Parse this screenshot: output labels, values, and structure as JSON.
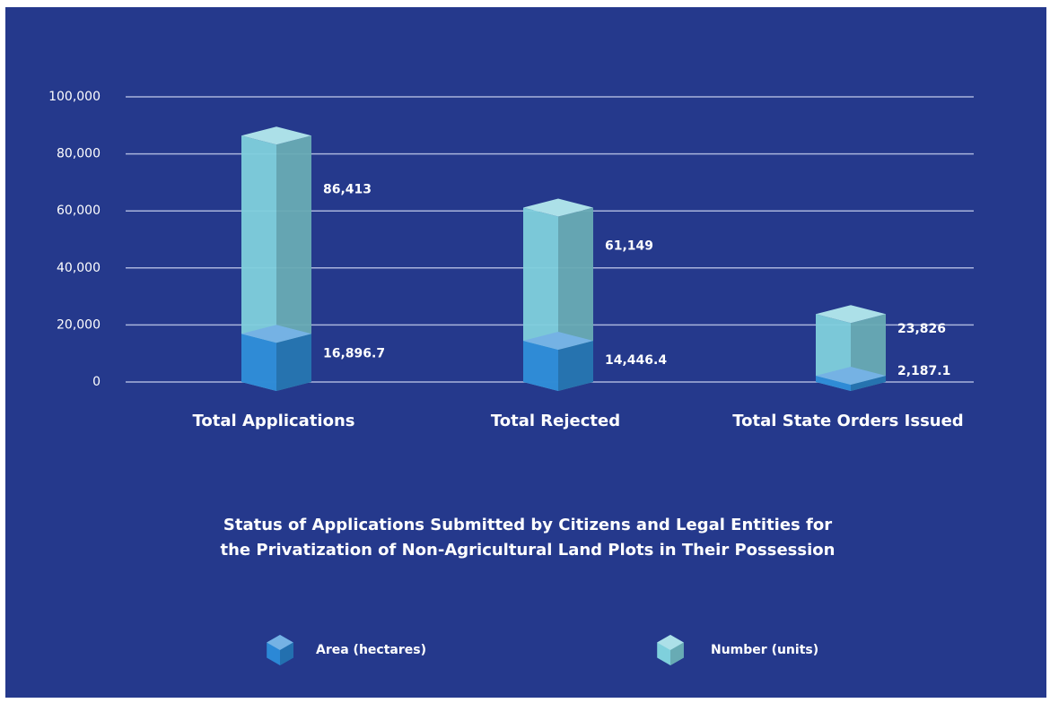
{
  "chart_data": {
    "type": "bar3d",
    "title": [
      "Status of Applications Submitted by Citizens and Legal Entities for",
      "the Privatization of Non-Agricultural Land Plots in Their Possession"
    ],
    "categories": [
      "Total Applications",
      "Total Rejected",
      "Total State Orders Issued"
    ],
    "series": [
      {
        "name": "Area (hectares)",
        "color": "#2b88d6",
        "values": [
          16896.7,
          14446.4,
          2187.1
        ],
        "value_labels": [
          "16,896.7",
          "14,446.4",
          "2,187.1"
        ]
      },
      {
        "name": "Number (units)",
        "color": "#7fd0dc",
        "values": [
          86413,
          61149,
          23826
        ],
        "value_labels": [
          "86,413",
          "61,149",
          "23,826"
        ]
      }
    ],
    "ylim": [
      0,
      100000
    ],
    "yticks": [
      0,
      {
        "value": 20000,
        "label": "20,000"
      },
      {
        "value": 40000,
        "label": "40,000"
      },
      {
        "value": 60000,
        "label": "60,000"
      },
      {
        "value": 80000,
        "label": "80,000"
      },
      {
        "value": 100000,
        "label": "100,000"
      }
    ],
    "grid": true
  }
}
